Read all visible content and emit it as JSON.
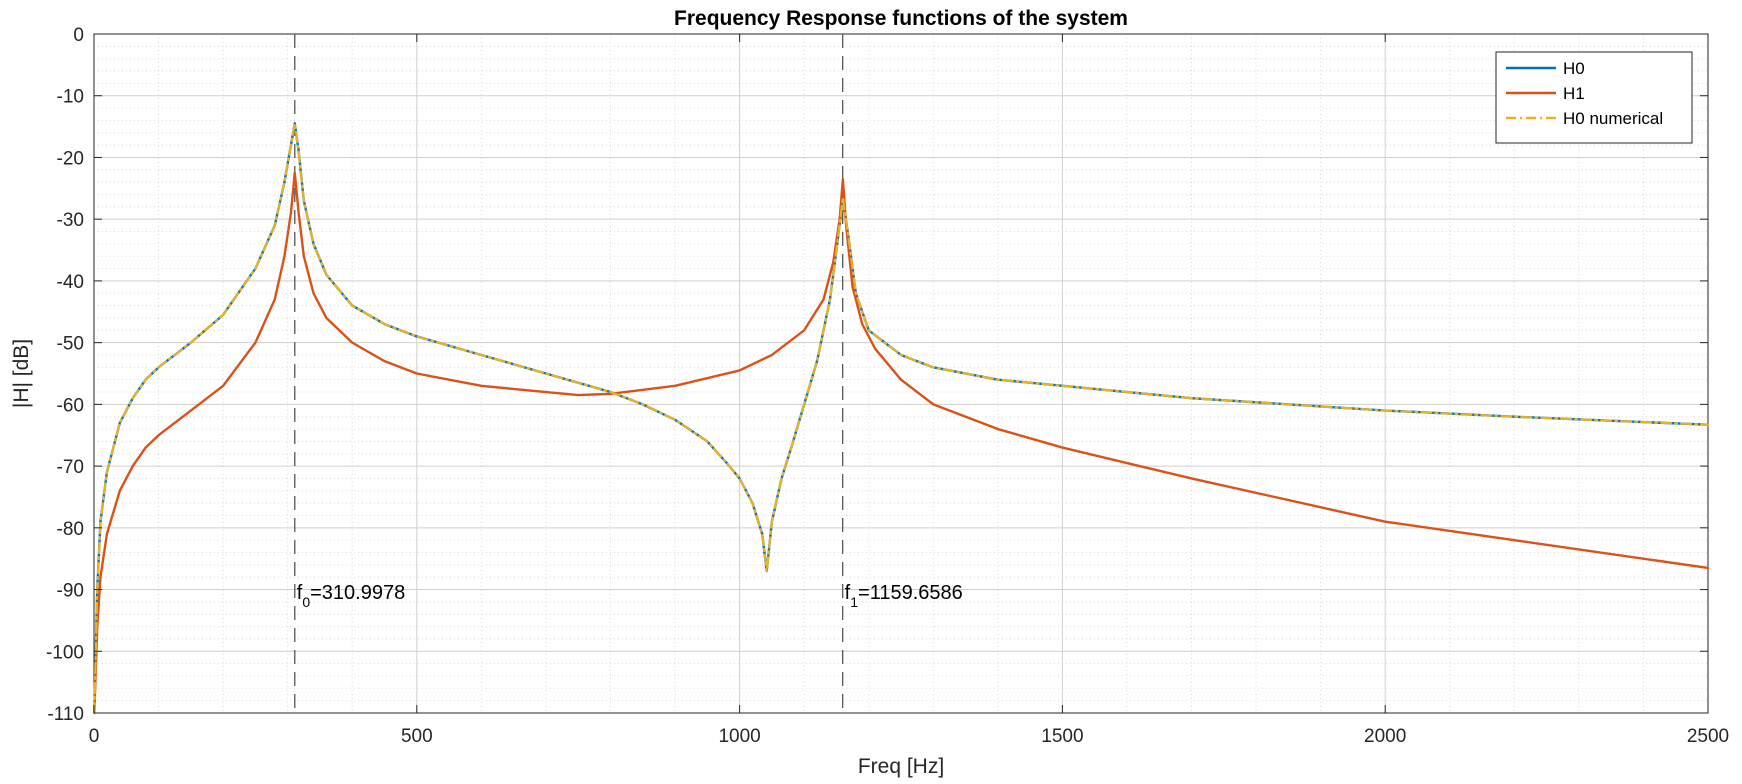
{
  "chart_data": {
    "type": "line",
    "title": "Frequency Response functions of the system",
    "xlabel": "Freq [Hz]",
    "ylabel": "|H| [dB]",
    "xlim": [
      0,
      2500
    ],
    "ylim": [
      -110,
      0
    ],
    "x_ticks": [
      0,
      500,
      1000,
      1500,
      2000,
      2500
    ],
    "y_ticks": [
      0,
      -10,
      -20,
      -30,
      -40,
      -50,
      -60,
      -70,
      -80,
      -90,
      -100,
      -110
    ],
    "grid": "major and minor, dotted",
    "legend_position": "top-right",
    "series": [
      {
        "name": "H0",
        "color": "#0072BD",
        "style": "solid",
        "x": [
          0.5,
          5,
          10,
          20,
          40,
          60,
          80,
          100,
          150,
          200,
          250,
          280,
          295,
          305,
          311,
          317,
          325,
          340,
          360,
          400,
          450,
          500,
          600,
          700,
          800,
          850,
          900,
          950,
          980,
          1000,
          1020,
          1035,
          1042,
          1050,
          1065,
          1080,
          1100,
          1120,
          1140,
          1150,
          1160,
          1170,
          1180,
          1200,
          1250,
          1300,
          1400,
          1500,
          1700,
          2000,
          2200,
          2500
        ],
        "y": [
          -110,
          -90,
          -79,
          -71,
          -63,
          -59,
          -56,
          -54,
          -50,
          -45.5,
          -38,
          -31,
          -24,
          -18,
          -14.5,
          -19,
          -27,
          -34,
          -39,
          -44,
          -47,
          -49,
          -52,
          -55,
          -58,
          -60,
          -62.5,
          -66,
          -69.5,
          -72,
          -76,
          -81,
          -87,
          -79,
          -72,
          -67,
          -60,
          -53,
          -43,
          -35,
          -26.5,
          -34,
          -42,
          -48,
          -52,
          -54,
          -56,
          -57,
          -59,
          -61,
          -62,
          -63.3
        ]
      },
      {
        "name": "H1",
        "color": "#D95319",
        "style": "solid",
        "x": [
          0.5,
          5,
          10,
          20,
          40,
          60,
          80,
          100,
          150,
          200,
          250,
          280,
          295,
          305,
          311,
          317,
          325,
          340,
          360,
          400,
          450,
          500,
          600,
          700,
          750,
          800,
          900,
          1000,
          1050,
          1100,
          1130,
          1145,
          1155,
          1160,
          1165,
          1175,
          1190,
          1210,
          1250,
          1300,
          1400,
          1500,
          1700,
          2000,
          2200,
          2500
        ],
        "y": [
          -110,
          -96,
          -88,
          -81,
          -74,
          -70,
          -67,
          -65,
          -61,
          -57,
          -50,
          -43,
          -36,
          -29,
          -22.5,
          -29,
          -36,
          -42,
          -46,
          -50,
          -53,
          -55,
          -57,
          -58,
          -58.5,
          -58.3,
          -57,
          -54.5,
          -52,
          -48,
          -43,
          -37,
          -30,
          -23.5,
          -31,
          -41,
          -47,
          -51,
          -56,
          -60,
          -64,
          -67,
          -72,
          -79,
          -82,
          -86.5
        ]
      },
      {
        "name": "H0 numerical",
        "color": "#EDB120",
        "style": "dash-dot",
        "x": [
          0.5,
          5,
          10,
          20,
          40,
          60,
          80,
          100,
          150,
          200,
          250,
          280,
          295,
          305,
          311,
          317,
          325,
          340,
          360,
          400,
          450,
          500,
          600,
          700,
          800,
          850,
          900,
          950,
          980,
          1000,
          1020,
          1035,
          1042,
          1050,
          1065,
          1080,
          1100,
          1120,
          1140,
          1150,
          1160,
          1170,
          1180,
          1200,
          1250,
          1300,
          1400,
          1500,
          1700,
          2000,
          2200,
          2500
        ],
        "y": [
          -110,
          -90,
          -79,
          -71,
          -63,
          -59,
          -56,
          -54,
          -50,
          -45.5,
          -38,
          -31,
          -24,
          -18,
          -14.5,
          -19,
          -27,
          -34,
          -39,
          -44,
          -47,
          -49,
          -52,
          -55,
          -58,
          -60,
          -62.5,
          -66,
          -69.5,
          -72,
          -76,
          -81,
          -87,
          -79,
          -72,
          -67,
          -60,
          -53,
          -43,
          -35,
          -26.5,
          -34,
          -42,
          -48,
          -52,
          -54,
          -56,
          -57,
          -59,
          -61,
          -62,
          -63.3
        ]
      }
    ],
    "annotations": [
      {
        "x": 310.9978,
        "y": -91.5,
        "base": "f",
        "sub": "0",
        "text": "=310.9978"
      },
      {
        "x": 1159.6586,
        "y": -91.5,
        "base": "f",
        "sub": "1",
        "text": "=1159.6586"
      }
    ],
    "reference_lines": [
      310.9978,
      1159.6586
    ]
  }
}
